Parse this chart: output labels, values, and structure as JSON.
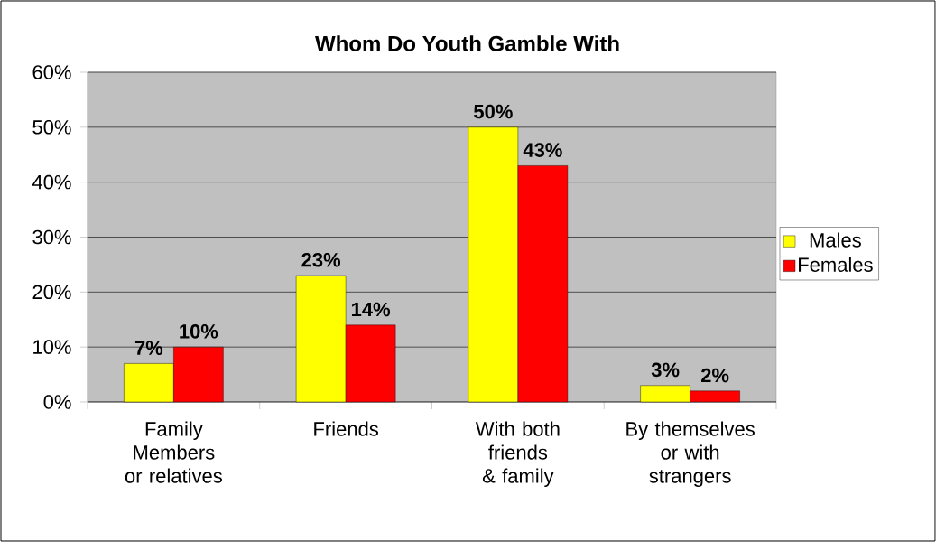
{
  "chart_data": {
    "type": "bar",
    "title": "Whom Do Youth Gamble With",
    "categories": [
      "Family Members or relatives",
      "Friends",
      "With both friends & family",
      "By themselves or with strangers"
    ],
    "series": [
      {
        "name": "Males",
        "color": "#ffff00",
        "values": [
          7,
          23,
          50,
          3
        ],
        "value_labels": [
          "7%",
          "23%",
          "50%",
          "3%"
        ]
      },
      {
        "name": "Females",
        "color": "#ff0000",
        "values": [
          10,
          14,
          43,
          2
        ],
        "value_labels": [
          "10%",
          "14%",
          "43%",
          "2%"
        ]
      }
    ],
    "ylim": [
      0,
      60
    ],
    "yticks": [
      {
        "value": 0,
        "label": "0%"
      },
      {
        "value": 10,
        "label": "10%"
      },
      {
        "value": 20,
        "label": "20%"
      },
      {
        "value": 30,
        "label": "30%"
      },
      {
        "value": 40,
        "label": "40%"
      },
      {
        "value": 50,
        "label": "50%"
      },
      {
        "value": 60,
        "label": "60%"
      }
    ],
    "grid": true,
    "legend": "right"
  }
}
